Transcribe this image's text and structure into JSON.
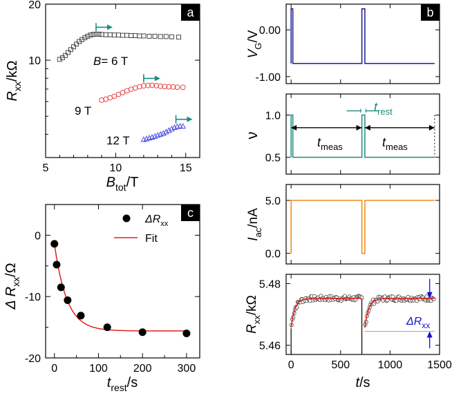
{
  "chart_data": [
    {
      "panel": "a",
      "type": "scatter",
      "xlabel": "B",
      "xlabel_sub": "tot",
      "xlabel_unit": "/T",
      "ylabel": "R",
      "ylabel_sub": "xx",
      "ylabel_unit": "/kΩ",
      "xlim": [
        5,
        16
      ],
      "ylim": [
        3,
        20
      ],
      "yscale": "log",
      "xticks": [
        "5",
        "10",
        "15"
      ],
      "yticks": [
        "10",
        "20"
      ],
      "series": [
        {
          "name": "B= 6 T",
          "label_main": "B",
          "label_rest": "= 6 T",
          "marker": "square",
          "color": "#333333",
          "x": [
            6.0,
            6.2,
            6.4,
            6.6,
            6.8,
            7.0,
            7.2,
            7.4,
            7.6,
            7.8,
            8.0,
            8.2,
            8.4,
            8.6,
            8.8,
            9.0,
            9.3,
            9.6,
            9.9,
            10.2,
            10.5,
            10.8,
            11.1,
            11.4,
            11.7,
            12.0,
            12.4,
            12.8,
            13.2,
            13.6,
            14.0,
            14.5
          ],
          "y": [
            10.1,
            10.3,
            10.6,
            11.0,
            11.4,
            11.8,
            12.2,
            12.6,
            12.9,
            13.2,
            13.45,
            13.65,
            13.75,
            13.8,
            13.8,
            13.75,
            13.7,
            13.7,
            13.65,
            13.65,
            13.6,
            13.6,
            13.55,
            13.55,
            13.5,
            13.5,
            13.45,
            13.45,
            13.4,
            13.4,
            13.35,
            13.3
          ],
          "arrow_at": 8.6
        },
        {
          "name": "9 T",
          "label_main": "",
          "label_rest": "9 T",
          "marker": "circle",
          "color": "#e83030",
          "x": [
            9.0,
            9.3,
            9.6,
            9.9,
            10.2,
            10.5,
            10.8,
            11.1,
            11.4,
            11.7,
            12.0,
            12.3,
            12.6,
            12.9,
            13.2,
            13.5,
            13.8,
            14.1,
            14.4,
            14.8
          ],
          "y": [
            6.1,
            6.18,
            6.28,
            6.4,
            6.55,
            6.7,
            6.85,
            6.98,
            7.1,
            7.2,
            7.28,
            7.32,
            7.33,
            7.3,
            7.25,
            7.22,
            7.2,
            7.18,
            7.16,
            7.15
          ],
          "arrow_at": 12.0
        },
        {
          "name": "12 T",
          "label_main": "",
          "label_rest": "12 T",
          "marker": "triangle",
          "color": "#3a3ae0",
          "x": [
            12.0,
            12.2,
            12.4,
            12.6,
            12.8,
            13.0,
            13.2,
            13.4,
            13.6,
            13.8,
            14.0,
            14.2,
            14.4,
            14.6,
            14.8
          ],
          "y": [
            3.75,
            3.78,
            3.82,
            3.86,
            3.9,
            3.95,
            4.0,
            4.05,
            4.12,
            4.2,
            4.28,
            4.35,
            4.4,
            4.42,
            4.42
          ],
          "arrow_at": 14.3
        }
      ]
    },
    {
      "panel": "b",
      "type": "line",
      "xlabel": "t",
      "xlabel_unit": "/s",
      "xlim": [
        -50,
        1500
      ],
      "xticks": [
        "0",
        "500",
        "1000",
        "1500"
      ],
      "subplots": [
        {
          "ylabel": "V",
          "ylabel_sub": "G",
          "ylabel_unit": "/V",
          "color": "#1a1a8c",
          "ylim": [
            -1.15,
            0.55
          ],
          "yticks": [
            "0.00",
            "-1.00"
          ],
          "ytick_values": [
            0,
            -1
          ],
          "t": [
            0,
            0,
            18,
            18,
            715,
            715,
            745,
            745,
            1450
          ],
          "v": [
            -0.72,
            0.45,
            0.45,
            -0.72,
            -0.72,
            0.45,
            0.45,
            -0.72,
            -0.72
          ]
        },
        {
          "ylabel": "ν",
          "color": "#1a8c80",
          "ylim": [
            0.3,
            1.25
          ],
          "yticks": [
            "1.0",
            "0.5"
          ],
          "ytick_values": [
            1.0,
            0.5
          ],
          "t": [
            0,
            0,
            18,
            18,
            715,
            715,
            745,
            745,
            1450
          ],
          "v": [
            0.5,
            1.0,
            1.0,
            0.5,
            0.5,
            1.0,
            1.0,
            0.5,
            0.5
          ],
          "annotations": {
            "t_meas_main": "t",
            "t_meas_sub": "meas",
            "t_rest_main": "t",
            "t_rest_sub": "rest"
          }
        },
        {
          "ylabel": "I",
          "ylabel_sub": "ac",
          "ylabel_unit": "/nA",
          "color": "#f08a10",
          "ylim": [
            -1.0,
            6.5
          ],
          "yticks": [
            "5.0",
            "0.0"
          ],
          "ytick_values": [
            5,
            0
          ],
          "t": [
            0,
            0,
            715,
            715,
            745,
            745,
            1450
          ],
          "v": [
            0,
            5,
            5,
            0,
            0,
            5,
            5
          ]
        },
        {
          "ylabel": "R",
          "ylabel_sub": "xx",
          "ylabel_unit": "/kΩ",
          "color": "#e02020",
          "ylim": [
            5.457,
            5.483
          ],
          "yticks": [
            "5.48",
            "5.46"
          ],
          "ytick_values": [
            5.48,
            5.46
          ],
          "fit": {
            "amplitude": 0.0095,
            "tau": 40,
            "plateau": 5.4752,
            "segments": [
              [
                0,
                715
              ],
              [
                745,
                1450
              ]
            ]
          },
          "delta_label_main": "ΔR",
          "delta_label_sub": "xx",
          "baseline": 5.4645
        }
      ]
    },
    {
      "panel": "c",
      "type": "scatter",
      "xlabel": "t",
      "xlabel_sub": "rest",
      "xlabel_unit": "/s",
      "ylabel": "Δ R",
      "ylabel_sub": "xx",
      "ylabel_unit": "/Ω",
      "xlim": [
        -20,
        330
      ],
      "ylim": [
        -20,
        5
      ],
      "xticks": [
        "0",
        "100",
        "200",
        "300"
      ],
      "yticks": [
        "0",
        "-10",
        "-20"
      ],
      "x": [
        0,
        5,
        15,
        30,
        60,
        120,
        200,
        300
      ],
      "y": [
        -1.4,
        -4.8,
        -8.5,
        -10.6,
        -13.1,
        -15.0,
        -15.8,
        -16.0
      ],
      "legend": {
        "points_main": "ΔR",
        "points_sub": "xx",
        "fit": "Fit"
      },
      "fit": {
        "amplitude": 14.2,
        "tau": 28,
        "offset": -15.6
      }
    }
  ],
  "panel_labels": {
    "a": "a",
    "b": "b",
    "c": "c"
  }
}
